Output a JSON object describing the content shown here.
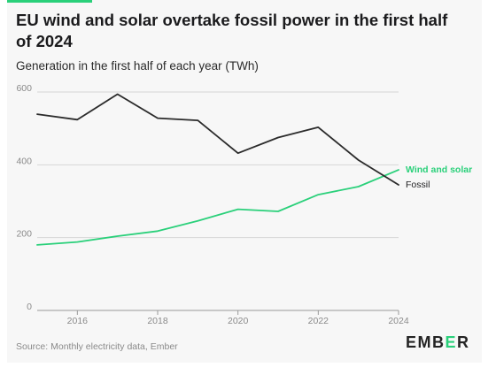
{
  "header": {
    "title": "EU wind and solar overtake fossil power in the first half of 2024",
    "subtitle": "Generation in the first half of each year (TWh)"
  },
  "footer": {
    "source": "Source: Monthly electricity data, Ember",
    "logo_text": "EMBER"
  },
  "colors": {
    "accent": "#2ad07a",
    "fossil": "#2b2b2b",
    "wind_solar": "#2ad07a",
    "grid": "#d6d6d6",
    "axis_text": "#8a8a8a"
  },
  "chart_data": {
    "type": "line",
    "title": "EU wind and solar overtake fossil power in the first half of 2024",
    "subtitle": "Generation in the first half of each year (TWh)",
    "xlabel": "",
    "ylabel": "",
    "x": [
      2015,
      2016,
      2017,
      2018,
      2019,
      2020,
      2021,
      2022,
      2023,
      2024
    ],
    "xlim": [
      2015,
      2024
    ],
    "ylim": [
      0,
      600
    ],
    "x_ticks": [
      2016,
      2018,
      2020,
      2022,
      2024
    ],
    "y_ticks": [
      0,
      200,
      400,
      600
    ],
    "grid": "horizontal",
    "legend": "inline-right",
    "series": [
      {
        "name": "Wind and solar",
        "color": "#2ad07a",
        "values": [
          180,
          188,
          204,
          218,
          246,
          278,
          272,
          318,
          340,
          386
        ]
      },
      {
        "name": "Fossil",
        "color": "#2b2b2b",
        "values": [
          539,
          524,
          594,
          528,
          522,
          432,
          475,
          503,
          413,
          345
        ]
      }
    ]
  }
}
